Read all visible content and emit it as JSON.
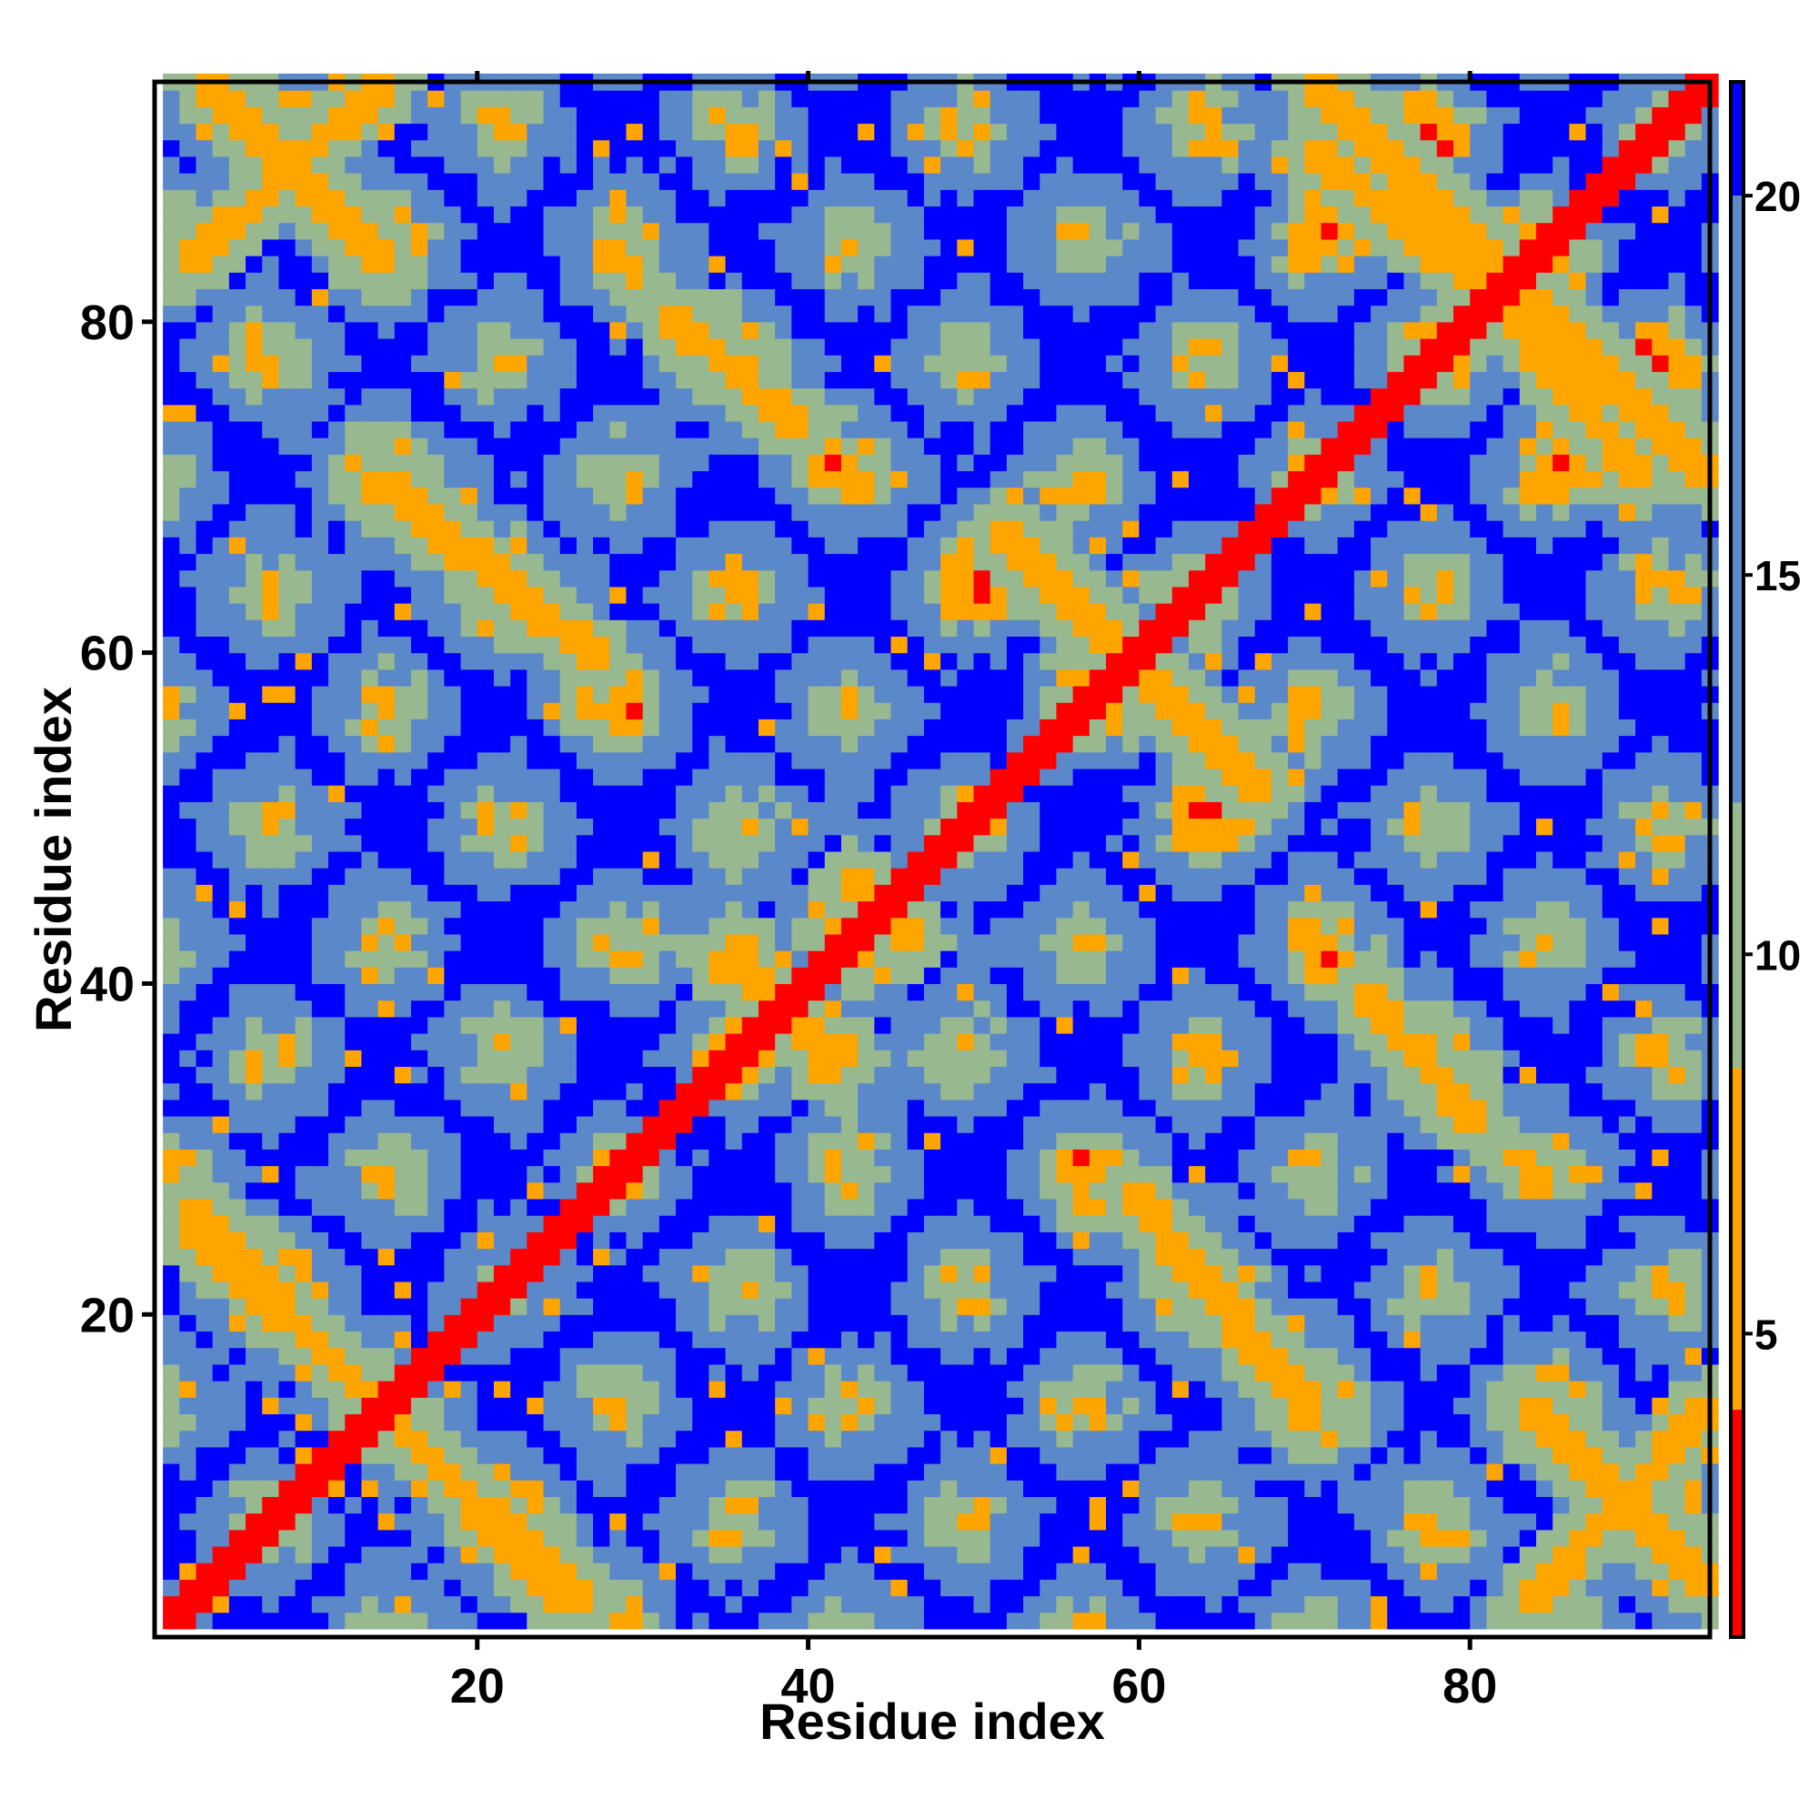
{
  "chart_data": {
    "type": "heatmap",
    "title": "",
    "xlabel": "Residue index",
    "ylabel": "Residue index",
    "n_residues": 94,
    "xlim": [
      1,
      94
    ],
    "ylim": [
      1,
      94
    ],
    "x_ticks": [
      20,
      40,
      60,
      80
    ],
    "x_tick_labels": [
      "20",
      "40",
      "60",
      "80"
    ],
    "y_ticks": [
      20,
      40,
      60,
      80
    ],
    "y_tick_labels": [
      "20",
      "40",
      "60",
      "80"
    ],
    "colorbar": {
      "range": [
        1,
        21.5
      ],
      "ticks": [
        5,
        10,
        15,
        20
      ],
      "tick_labels": [
        "5",
        "10",
        "15",
        "20"
      ],
      "bands": [
        {
          "from": 1,
          "to": 4,
          "color": "#ff0000"
        },
        {
          "from": 4,
          "to": 8.5,
          "color": "#ffa500"
        },
        {
          "from": 8.5,
          "to": 12,
          "color": "#98b890"
        },
        {
          "from": 12,
          "to": 20,
          "color": "#5b88c8"
        },
        {
          "from": 20,
          "to": 21.5,
          "color": "#0000ff"
        }
      ]
    },
    "grid": false,
    "legend": "colorbar-right",
    "pattern": {
      "description_of_values": "symmetric residue-residue distance matrix",
      "main_diagonal_value": 2,
      "helix_period": 7.2,
      "contact_bands": [
        {
          "orientation": "anti",
          "from": [
            2,
            25
          ],
          "to": [
            26,
            2
          ]
        },
        {
          "orientation": "anti",
          "from": [
            3,
            94
          ],
          "to": [
            14,
            83
          ]
        },
        {
          "orientation": "anti",
          "from": [
            13,
            70
          ],
          "to": [
            27,
            59
          ]
        },
        {
          "orientation": "anti",
          "from": [
            31,
            80
          ],
          "to": [
            39,
            73
          ]
        },
        {
          "orientation": "anti",
          "from": [
            51,
            67
          ],
          "to": [
            67,
            51
          ]
        },
        {
          "orientation": "anti",
          "from": [
            59,
            27
          ],
          "to": [
            70,
            14
          ]
        },
        {
          "orientation": "anti",
          "from": [
            73,
            39
          ],
          "to": [
            80,
            31
          ]
        },
        {
          "orientation": "anti",
          "from": [
            80,
            84
          ],
          "to": [
            94,
            70
          ]
        },
        {
          "orientation": "anti",
          "from": [
            83,
            2
          ],
          "to": [
            94,
            14
          ]
        },
        {
          "orientation": "parallel",
          "from": [
            70,
            90
          ],
          "to": [
            82,
            80
          ]
        },
        {
          "orientation": "parallel",
          "from": [
            34,
            41
          ],
          "to": [
            42,
            35
          ]
        },
        {
          "orientation": "parallel",
          "from": [
            42,
            46
          ],
          "to": [
            46,
            42
          ]
        }
      ]
    }
  },
  "colors": {
    "far": "#0000ff",
    "mid": "#5b88c8",
    "near": "#98b890",
    "contact": "#ffa500",
    "diagonal": "#ff0000"
  }
}
